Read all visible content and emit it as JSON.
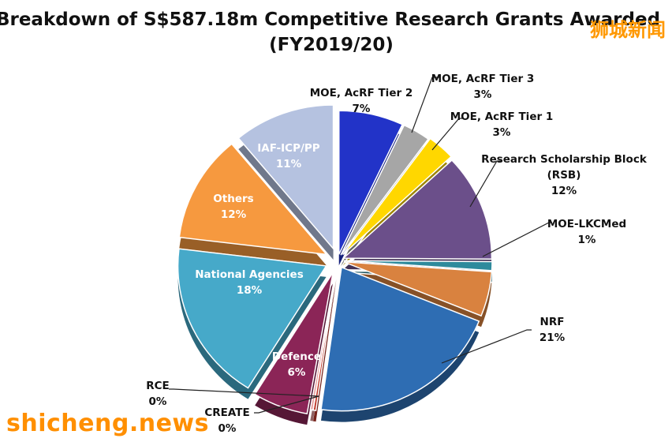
{
  "chart_data": {
    "type": "pie",
    "title": "Breakdown of S$587.18m Competitive Research Grants Awarded",
    "subtitle": "(FY2019/20)",
    "slices": [
      {
        "label": "MOE, AcRF Tier 2",
        "value": 7,
        "display": "7%",
        "color": "#2233c8"
      },
      {
        "label": "MOE, AcRF Tier 3",
        "value": 3,
        "display": "3%",
        "color": "#a6a6a6"
      },
      {
        "label": "MOE, AcRF Tier 1",
        "value": 3,
        "display": "3%",
        "color": "#ffd700"
      },
      {
        "label": "Research Scholarship Block (RSB)",
        "label_lines": [
          "Research Scholarship Block",
          "(RSB)"
        ],
        "value": 12,
        "display": "12%",
        "color": "#6b4f8a"
      },
      {
        "label": "MOE-LKCMed",
        "value": 1,
        "display": "1%",
        "color": "#2e8a9c"
      },
      {
        "label": "",
        "value": 5,
        "display": "",
        "color": "#d9823f"
      },
      {
        "label": "NRF",
        "value": 21,
        "display": "21%",
        "color": "#2e6db3"
      },
      {
        "label": "CREATE",
        "value": 0.3,
        "display": "0%",
        "color": "#c0392b"
      },
      {
        "label": "RCE",
        "value": 0.3,
        "display": "0%",
        "color": "#e8a0a0"
      },
      {
        "label": "Defence",
        "value": 6,
        "display": "6%",
        "color": "#8b2557"
      },
      {
        "label": "National Agencies",
        "value": 18,
        "display": "18%",
        "color": "#46a9c9"
      },
      {
        "label": "Others",
        "value": 12,
        "display": "12%",
        "color": "#f6993f"
      },
      {
        "label": "IAF-ICP/PP",
        "value": 11,
        "display": "11%",
        "color": "#b5c2e0"
      }
    ]
  },
  "watermarks": {
    "cn": "狮城新闻",
    "en": "shicheng.news"
  }
}
